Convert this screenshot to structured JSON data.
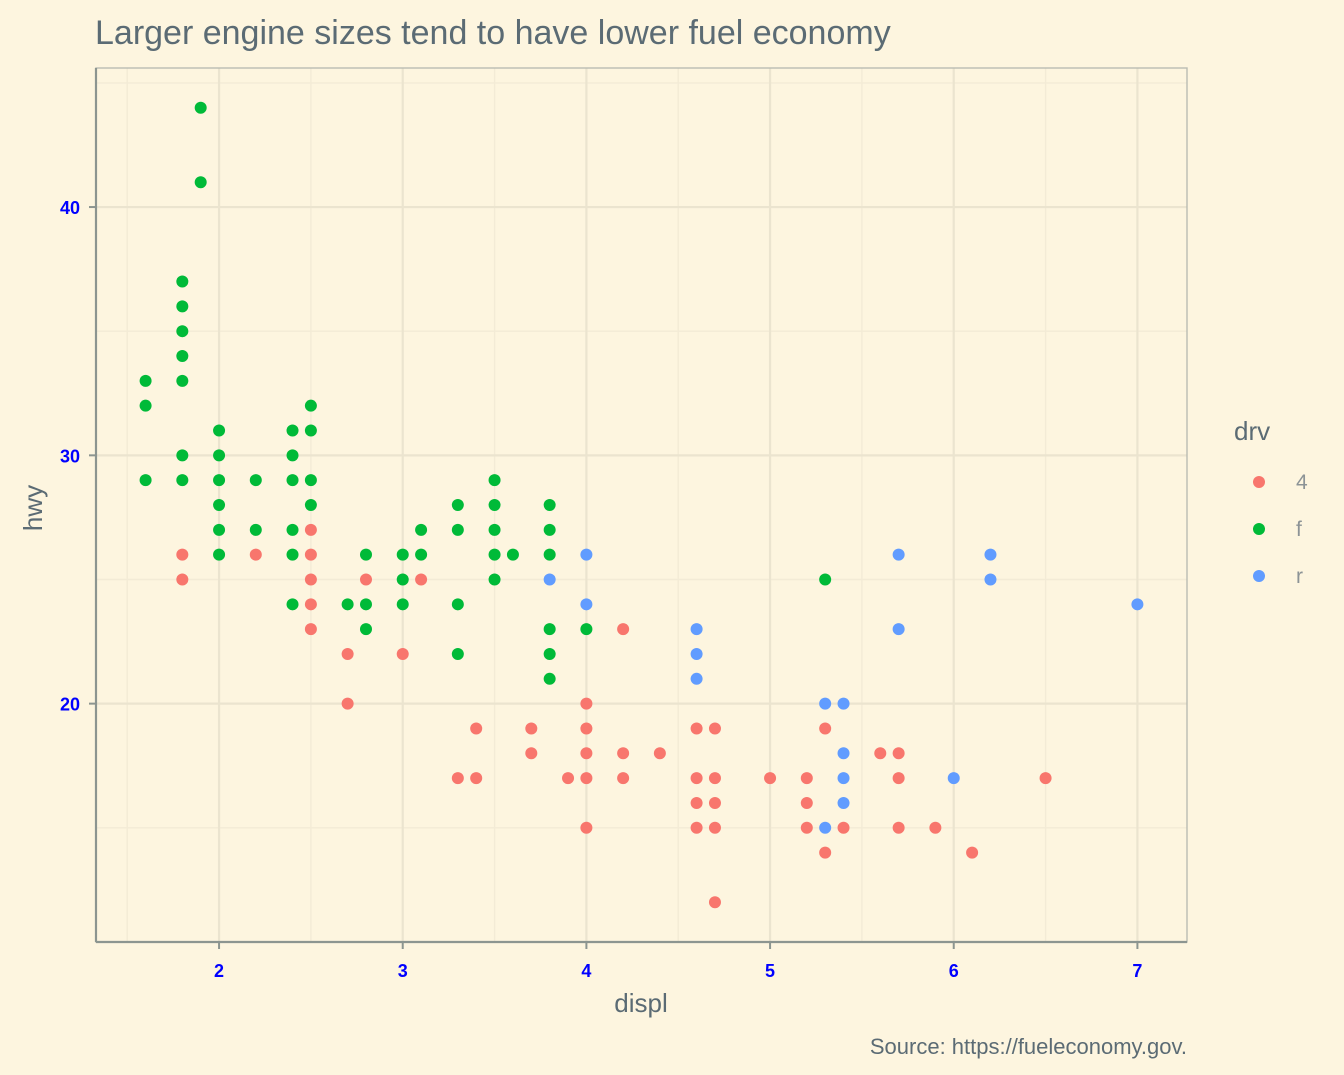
{
  "chart_data": {
    "type": "scatter",
    "title": "Larger engine sizes tend to have lower fuel economy",
    "xlabel": "displ",
    "ylabel": "hwy",
    "caption": "Source: https://fueleconomy.gov.",
    "xlim": [
      1.33,
      7.27
    ],
    "ylim": [
      10.4,
      45.6
    ],
    "x_ticks": [
      2,
      3,
      4,
      5,
      6,
      7
    ],
    "y_ticks": [
      20,
      30,
      40
    ],
    "x_tick_labels": [
      "2",
      "3",
      "4",
      "5",
      "6",
      "7"
    ],
    "y_tick_labels": [
      "20",
      "30",
      "40"
    ],
    "grid": true,
    "legend": {
      "title": "drv",
      "position": "right",
      "entries": [
        {
          "label": "4",
          "color": "#f8766d"
        },
        {
          "label": "f",
          "color": "#00ba38"
        },
        {
          "label": "r",
          "color": "#619cff"
        }
      ]
    },
    "series": [
      {
        "name": "4",
        "color": "#f8766d",
        "points": [
          [
            1.8,
            26
          ],
          [
            1.8,
            25
          ],
          [
            2.2,
            26
          ],
          [
            2.5,
            27
          ],
          [
            2.5,
            26
          ],
          [
            2.5,
            25
          ],
          [
            2.5,
            24
          ],
          [
            2.5,
            23
          ],
          [
            2.7,
            22
          ],
          [
            2.7,
            20
          ],
          [
            2.8,
            25
          ],
          [
            3.0,
            22
          ],
          [
            3.1,
            25
          ],
          [
            3.3,
            17
          ],
          [
            3.4,
            19
          ],
          [
            3.4,
            17
          ],
          [
            3.7,
            19
          ],
          [
            3.7,
            18
          ],
          [
            3.9,
            17
          ],
          [
            4.0,
            20
          ],
          [
            4.0,
            19
          ],
          [
            4.0,
            18
          ],
          [
            4.0,
            17
          ],
          [
            4.0,
            15
          ],
          [
            4.2,
            23
          ],
          [
            4.2,
            18
          ],
          [
            4.2,
            17
          ],
          [
            4.4,
            18
          ],
          [
            4.6,
            19
          ],
          [
            4.6,
            17
          ],
          [
            4.6,
            16
          ],
          [
            4.6,
            15
          ],
          [
            4.7,
            19
          ],
          [
            4.7,
            17
          ],
          [
            4.7,
            16
          ],
          [
            4.7,
            15
          ],
          [
            4.7,
            12
          ],
          [
            5.0,
            17
          ],
          [
            5.2,
            17
          ],
          [
            5.2,
            16
          ],
          [
            5.2,
            15
          ],
          [
            5.3,
            19
          ],
          [
            5.3,
            14
          ],
          [
            5.4,
            15
          ],
          [
            5.6,
            18
          ],
          [
            5.7,
            18
          ],
          [
            5.7,
            17
          ],
          [
            5.7,
            15
          ],
          [
            5.9,
            15
          ],
          [
            6.1,
            14
          ],
          [
            6.5,
            17
          ]
        ]
      },
      {
        "name": "f",
        "color": "#00ba38",
        "points": [
          [
            1.6,
            33
          ],
          [
            1.6,
            32
          ],
          [
            1.6,
            29
          ],
          [
            1.8,
            37
          ],
          [
            1.8,
            36
          ],
          [
            1.8,
            35
          ],
          [
            1.8,
            34
          ],
          [
            1.8,
            33
          ],
          [
            1.8,
            30
          ],
          [
            1.8,
            29
          ],
          [
            1.9,
            44
          ],
          [
            1.9,
            41
          ],
          [
            2.0,
            31
          ],
          [
            2.0,
            30
          ],
          [
            2.0,
            29
          ],
          [
            2.0,
            28
          ],
          [
            2.0,
            27
          ],
          [
            2.0,
            26
          ],
          [
            2.2,
            29
          ],
          [
            2.2,
            27
          ],
          [
            2.4,
            31
          ],
          [
            2.4,
            30
          ],
          [
            2.4,
            29
          ],
          [
            2.4,
            27
          ],
          [
            2.4,
            26
          ],
          [
            2.4,
            24
          ],
          [
            2.5,
            32
          ],
          [
            2.5,
            31
          ],
          [
            2.5,
            29
          ],
          [
            2.5,
            28
          ],
          [
            2.7,
            24
          ],
          [
            2.8,
            26
          ],
          [
            2.8,
            24
          ],
          [
            2.8,
            23
          ],
          [
            3.0,
            26
          ],
          [
            3.0,
            25
          ],
          [
            3.0,
            24
          ],
          [
            3.1,
            27
          ],
          [
            3.1,
            26
          ],
          [
            3.3,
            28
          ],
          [
            3.3,
            27
          ],
          [
            3.3,
            24
          ],
          [
            3.3,
            22
          ],
          [
            3.5,
            29
          ],
          [
            3.5,
            28
          ],
          [
            3.5,
            27
          ],
          [
            3.5,
            26
          ],
          [
            3.5,
            25
          ],
          [
            3.6,
            26
          ],
          [
            3.8,
            28
          ],
          [
            3.8,
            27
          ],
          [
            3.8,
            26
          ],
          [
            3.8,
            23
          ],
          [
            3.8,
            22
          ],
          [
            3.8,
            21
          ],
          [
            4.0,
            23
          ],
          [
            5.3,
            25
          ]
        ]
      },
      {
        "name": "r",
        "color": "#619cff",
        "points": [
          [
            3.8,
            25
          ],
          [
            4.0,
            26
          ],
          [
            4.0,
            24
          ],
          [
            4.6,
            23
          ],
          [
            4.6,
            22
          ],
          [
            4.6,
            21
          ],
          [
            5.3,
            20
          ],
          [
            5.3,
            15
          ],
          [
            5.4,
            20
          ],
          [
            5.4,
            18
          ],
          [
            5.4,
            17
          ],
          [
            5.4,
            16
          ],
          [
            5.7,
            26
          ],
          [
            5.7,
            23
          ],
          [
            6.0,
            17
          ],
          [
            6.2,
            26
          ],
          [
            6.2,
            25
          ],
          [
            7.0,
            24
          ]
        ]
      }
    ]
  }
}
